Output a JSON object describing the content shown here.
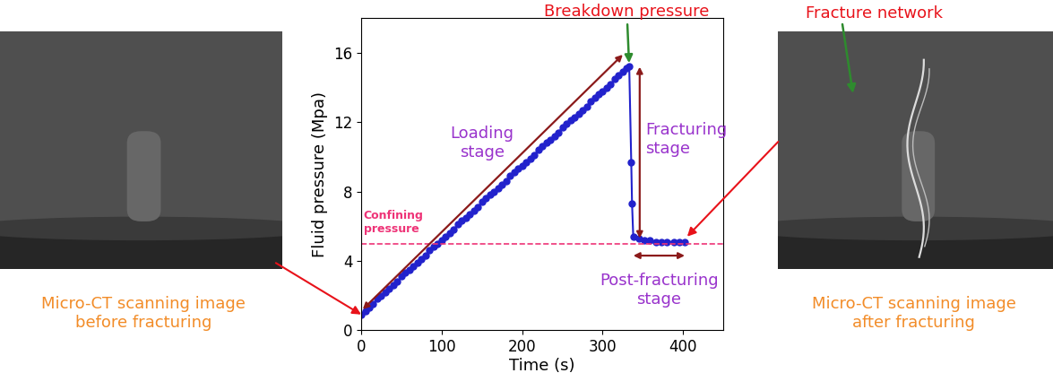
{
  "chart_data": {
    "type": "line",
    "x": [
      0,
      5,
      10,
      15,
      20,
      25,
      30,
      35,
      40,
      45,
      50,
      55,
      60,
      65,
      70,
      75,
      80,
      85,
      90,
      95,
      100,
      105,
      110,
      115,
      120,
      125,
      130,
      135,
      140,
      145,
      150,
      155,
      160,
      165,
      170,
      175,
      180,
      185,
      190,
      195,
      200,
      205,
      210,
      215,
      220,
      225,
      230,
      235,
      240,
      245,
      250,
      255,
      260,
      265,
      270,
      275,
      280,
      285,
      290,
      295,
      300,
      305,
      310,
      315,
      320,
      325,
      330,
      333,
      335.5,
      336.5,
      338,
      345,
      352,
      359,
      366,
      373,
      380,
      388,
      395,
      402
    ],
    "values": [
      0.9,
      1.1,
      1.3,
      1.5,
      1.8,
      2.0,
      2.2,
      2.4,
      2.6,
      2.8,
      3.1,
      3.3,
      3.5,
      3.7,
      3.9,
      4.1,
      4.3,
      4.6,
      4.8,
      5.0,
      5.2,
      5.4,
      5.6,
      5.8,
      6.1,
      6.3,
      6.5,
      6.7,
      6.9,
      7.1,
      7.4,
      7.6,
      7.8,
      8.0,
      8.2,
      8.4,
      8.6,
      8.9,
      9.1,
      9.3,
      9.5,
      9.7,
      9.9,
      10.1,
      10.4,
      10.6,
      10.8,
      11.0,
      11.2,
      11.4,
      11.7,
      11.9,
      12.1,
      12.3,
      12.5,
      12.7,
      12.9,
      13.2,
      13.4,
      13.6,
      13.8,
      14.0,
      14.2,
      14.5,
      14.7,
      14.9,
      15.1,
      15.2,
      9.7,
      7.3,
      5.4,
      5.3,
      5.2,
      5.2,
      5.1,
      5.1,
      5.1,
      5.1,
      5.1,
      5.1
    ],
    "color": "#2222cc",
    "marker": "circle",
    "xlabel": "Time (s)",
    "ylabel": "Fluid pressure (Mpa)",
    "xlim": [
      0,
      450
    ],
    "xticks": [
      0,
      100,
      200,
      300,
      400
    ],
    "ylim": [
      0,
      18
    ],
    "yticks": [
      0,
      4,
      8,
      12,
      16
    ],
    "confining_pressure": {
      "value": 5,
      "label": [
        "Confining",
        "pressure"
      ]
    },
    "annotations": {
      "breakdown": "Breakdown pressure",
      "loading": [
        "Loading",
        "stage"
      ],
      "fracturing": [
        "Fracturing",
        "stage"
      ],
      "post_fracturing": [
        "Post-fracturing",
        "stage"
      ]
    }
  },
  "images": {
    "before": {
      "caption": [
        "Micro-CT scanning image",
        "before fracturing"
      ]
    },
    "after": {
      "caption": [
        "Micro-CT scanning image",
        "after fracturing"
      ],
      "label": "Fracture network"
    }
  }
}
